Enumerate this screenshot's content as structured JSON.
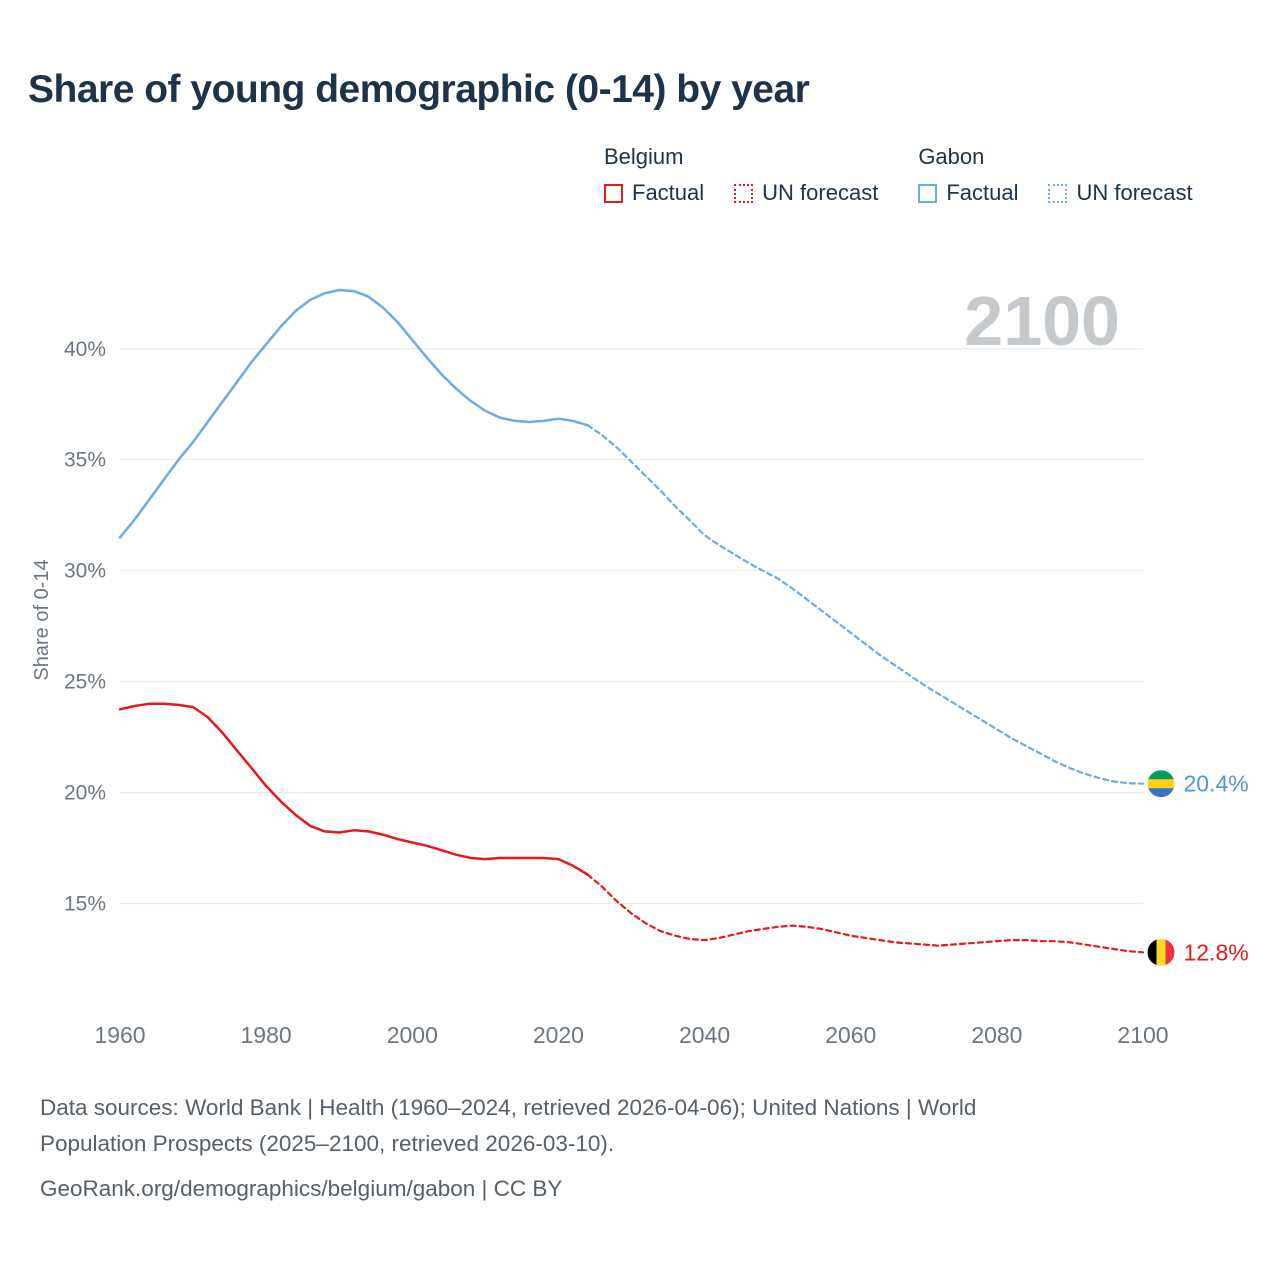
{
  "title": "Share of young demographic (0-14) by year",
  "legend": {
    "groups": [
      {
        "name": "Belgium",
        "color": "#e8191d",
        "entries": [
          {
            "label": "Factual",
            "style": "solid"
          },
          {
            "label": "UN forecast",
            "style": "dashed"
          }
        ]
      },
      {
        "name": "Gabon",
        "color": "#6aabe8",
        "entries": [
          {
            "label": "Factual",
            "style": "solid"
          },
          {
            "label": "UN forecast",
            "style": "dashed"
          }
        ]
      }
    ]
  },
  "footer": {
    "lines": [
      "Data sources: World Bank | Health (1960–2024, retrieved 2026-04-06); United Nations | World",
      "Population Prospects (2025–2100, retrieved 2026-03-10).",
      "GeoRank.org/demographics/belgium/gabon | CC BY"
    ]
  },
  "chart_data": {
    "type": "line",
    "title": "Share of young demographic (0-14) by year",
    "xlabel": "",
    "ylabel": "Share of 0-14",
    "watermark": "2100",
    "xlim": [
      1960,
      2100
    ],
    "ylim": [
      10.2,
      43.1
    ],
    "x_ticks": [
      1960,
      1980,
      2000,
      2020,
      2040,
      2060,
      2080,
      2100
    ],
    "y_ticks": [
      15,
      20,
      25,
      30,
      35,
      40
    ],
    "y_tick_suffix": "%",
    "grid": true,
    "legend_position": "top-right",
    "colors": {
      "belgium": "#e8191d",
      "gabon_line": "#6aabe8",
      "gabon_label": "#4f97dc",
      "grid": "#e8eaec",
      "axis_text": "#6d7680",
      "watermark": "#c6c9cc"
    },
    "series": [
      {
        "id": "gabon-factual",
        "name": "Gabon Factual",
        "color": "#6aabe8",
        "style": "solid",
        "x": [
          1960,
          1962,
          1964,
          1966,
          1968,
          1970,
          1972,
          1974,
          1976,
          1978,
          1980,
          1982,
          1984,
          1986,
          1988,
          1990,
          1992,
          1994,
          1996,
          1998,
          2000,
          2002,
          2004,
          2006,
          2008,
          2010,
          2012,
          2014,
          2016,
          2018,
          2020,
          2022,
          2024
        ],
        "y": [
          31.5,
          32.3,
          33.2,
          34.1,
          35.0,
          35.8,
          36.7,
          37.6,
          38.5,
          39.4,
          40.2,
          41.0,
          41.7,
          42.2,
          42.5,
          42.65,
          42.6,
          42.35,
          41.85,
          41.2,
          40.4,
          39.6,
          38.85,
          38.2,
          37.65,
          37.2,
          36.9,
          36.75,
          36.7,
          36.75,
          36.85,
          36.75,
          36.55
        ]
      },
      {
        "id": "gabon-forecast",
        "name": "Gabon UN forecast",
        "color": "#6aabe8",
        "style": "dashed",
        "x": [
          2024,
          2026,
          2028,
          2030,
          2032,
          2034,
          2036,
          2038,
          2040,
          2042,
          2044,
          2046,
          2048,
          2050,
          2052,
          2054,
          2056,
          2058,
          2060,
          2062,
          2064,
          2066,
          2068,
          2070,
          2072,
          2074,
          2076,
          2078,
          2080,
          2082,
          2084,
          2086,
          2088,
          2090,
          2092,
          2094,
          2096,
          2098,
          2100
        ],
        "y": [
          36.55,
          36.1,
          35.55,
          34.9,
          34.25,
          33.6,
          32.9,
          32.25,
          31.6,
          31.15,
          30.75,
          30.35,
          30.0,
          29.65,
          29.2,
          28.7,
          28.2,
          27.7,
          27.2,
          26.7,
          26.2,
          25.75,
          25.3,
          24.85,
          24.45,
          24.05,
          23.65,
          23.25,
          22.85,
          22.45,
          22.1,
          21.75,
          21.4,
          21.1,
          20.85,
          20.65,
          20.5,
          20.42,
          20.4
        ]
      },
      {
        "id": "belgium-factual",
        "name": "Belgium Factual",
        "color": "#e8191d",
        "style": "solid",
        "x": [
          1960,
          1962,
          1964,
          1966,
          1968,
          1970,
          1972,
          1974,
          1976,
          1978,
          1980,
          1982,
          1984,
          1986,
          1988,
          1990,
          1992,
          1994,
          1996,
          1998,
          2000,
          2002,
          2004,
          2006,
          2008,
          2010,
          2012,
          2014,
          2016,
          2018,
          2020,
          2022,
          2024
        ],
        "y": [
          23.75,
          23.9,
          24.0,
          24.0,
          23.95,
          23.85,
          23.4,
          22.7,
          21.9,
          21.1,
          20.3,
          19.6,
          19.0,
          18.5,
          18.25,
          18.2,
          18.3,
          18.25,
          18.1,
          17.9,
          17.75,
          17.6,
          17.4,
          17.2,
          17.05,
          17.0,
          17.05,
          17.05,
          17.05,
          17.05,
          17.0,
          16.7,
          16.3
        ]
      },
      {
        "id": "belgium-forecast",
        "name": "Belgium UN forecast",
        "color": "#e8191d",
        "style": "dashed",
        "x": [
          2024,
          2026,
          2028,
          2030,
          2032,
          2034,
          2036,
          2038,
          2040,
          2042,
          2044,
          2046,
          2048,
          2050,
          2052,
          2054,
          2056,
          2058,
          2060,
          2062,
          2064,
          2066,
          2068,
          2070,
          2072,
          2074,
          2076,
          2078,
          2080,
          2082,
          2084,
          2086,
          2088,
          2090,
          2092,
          2094,
          2096,
          2098,
          2100
        ],
        "y": [
          16.3,
          15.75,
          15.1,
          14.55,
          14.1,
          13.75,
          13.55,
          13.4,
          13.35,
          13.45,
          13.6,
          13.75,
          13.85,
          13.95,
          14.0,
          13.95,
          13.85,
          13.7,
          13.55,
          13.45,
          13.35,
          13.25,
          13.2,
          13.15,
          13.1,
          13.15,
          13.2,
          13.25,
          13.3,
          13.35,
          13.35,
          13.3,
          13.3,
          13.25,
          13.15,
          13.05,
          12.95,
          12.85,
          12.8
        ]
      }
    ],
    "end_markers": [
      {
        "series": "Gabon",
        "label": "20.4%",
        "value": 20.4,
        "color": "#4f97dc",
        "flag": "gabon"
      },
      {
        "series": "Belgium",
        "label": "12.8%",
        "value": 12.8,
        "color": "#e8191d",
        "flag": "belgium"
      }
    ],
    "flags": {
      "gabon": {
        "type": "horizontal",
        "colors": [
          "#009e60",
          "#fcd116",
          "#3a75c4"
        ]
      },
      "belgium": {
        "type": "vertical",
        "colors": [
          "#000000",
          "#FDDA24",
          "#EF3340"
        ]
      }
    }
  }
}
